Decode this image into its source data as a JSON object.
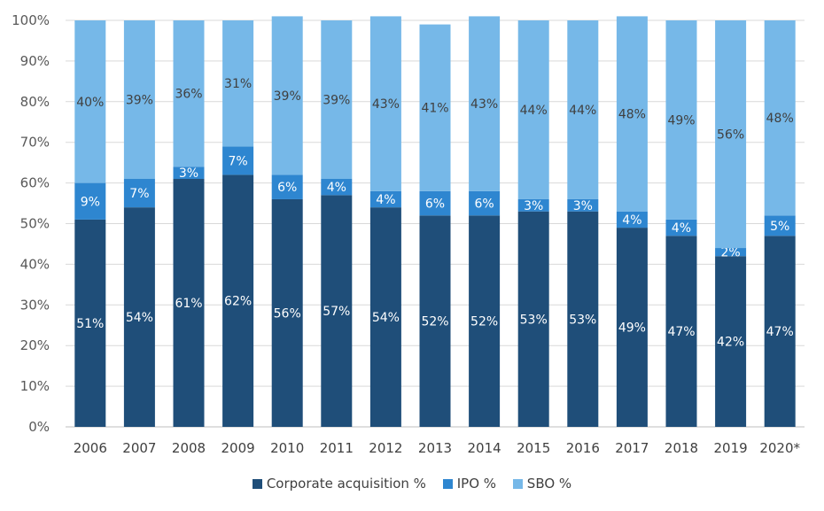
{
  "chart_data": {
    "type": "bar",
    "stacked": true,
    "categories": [
      "2006",
      "2007",
      "2008",
      "2009",
      "2010",
      "2011",
      "2012",
      "2013",
      "2014",
      "2015",
      "2016",
      "2017",
      "2018",
      "2019",
      "2020*"
    ],
    "series": [
      {
        "name": "Corporate acquisition %",
        "color": "#1f4e79",
        "values": [
          51,
          54,
          61,
          62,
          56,
          57,
          54,
          52,
          52,
          53,
          53,
          49,
          47,
          42,
          47
        ],
        "labels": [
          "51%",
          "54%",
          "61%",
          "62%",
          "56%",
          "57%",
          "54%",
          "52%",
          "52%",
          "53%",
          "53%",
          "49%",
          "47%",
          "42%",
          "47%"
        ]
      },
      {
        "name": "IPO %",
        "color": "#2e86d0",
        "values": [
          9,
          7,
          3,
          7,
          6,
          4,
          4,
          6,
          6,
          3,
          3,
          4,
          4,
          2,
          5
        ],
        "labels": [
          "9%",
          "7%",
          "3%",
          "7%",
          "6%",
          "4%",
          "4%",
          "6%",
          "6%",
          "3%",
          "3%",
          "4%",
          "4%",
          "2%",
          "5%"
        ]
      },
      {
        "name": "SBO %",
        "color": "#76b8e8",
        "values": [
          40,
          39,
          36,
          31,
          39,
          39,
          43,
          41,
          43,
          44,
          44,
          48,
          49,
          56,
          48
        ],
        "labels": [
          "40%",
          "39%",
          "36%",
          "31%",
          "39%",
          "39%",
          "43%",
          "41%",
          "43%",
          "44%",
          "44%",
          "48%",
          "49%",
          "56%",
          "48%"
        ]
      }
    ],
    "yticks": [
      "0%",
      "10%",
      "20%",
      "30%",
      "40%",
      "50%",
      "60%",
      "70%",
      "80%",
      "90%",
      "100%"
    ],
    "ylim": [
      0,
      100
    ],
    "grid": true,
    "legend_position": "bottom"
  }
}
